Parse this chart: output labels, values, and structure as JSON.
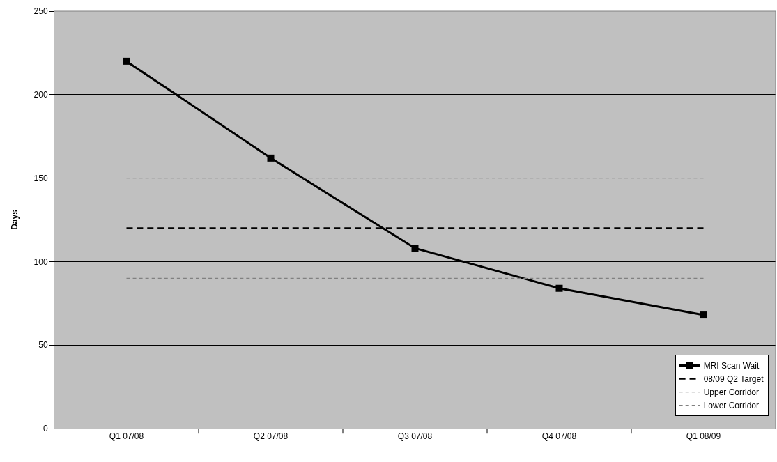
{
  "chart_data": {
    "type": "line",
    "ylabel": "Days",
    "categories": [
      "Q1 07/08",
      "Q2 07/08",
      "Q3 07/08",
      "Q4 07/08",
      "Q1 08/09"
    ],
    "series": [
      {
        "name": "MRI Scan Wait",
        "color": "#000000",
        "values": [
          220,
          162,
          108,
          84,
          68
        ],
        "marker": "square",
        "line_style": "solid"
      },
      {
        "name": "08/09 Q2 Target",
        "color": "#000000",
        "values": [
          120,
          120,
          120,
          120,
          120
        ],
        "marker": "none",
        "line_style": "dashed"
      },
      {
        "name": "Upper Corridor",
        "color": "#808080",
        "values": [
          150,
          150,
          150,
          150,
          150
        ],
        "marker": "none",
        "line_style": "dashed"
      },
      {
        "name": "Lower Corridor",
        "color": "#808080",
        "values": [
          90,
          90,
          90,
          90,
          90
        ],
        "marker": "none",
        "line_style": "dashed"
      }
    ],
    "ylim": [
      0,
      250
    ],
    "yticks": [
      0,
      50,
      100,
      150,
      200,
      250
    ],
    "grid": "y",
    "legend": "bottom right"
  }
}
